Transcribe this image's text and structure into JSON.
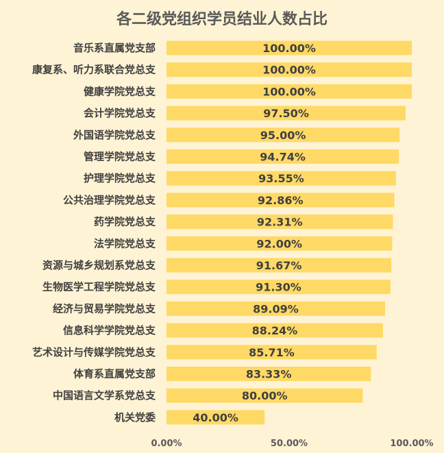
{
  "chart_data": {
    "type": "bar",
    "orientation": "horizontal",
    "title": "各二级党组织学员结业人数占比",
    "categories": [
      "音乐系直属党支部",
      "康复系、听力系联合党总支",
      "健康学院党总支",
      "会计学院党总支",
      "外国语学院党总支",
      "管理学院党总支",
      "护理学院党总支",
      "公共治理学院党总支",
      "药学院党总支",
      "法学院党总支",
      "资源与城乡规划系党总支",
      "生物医学工程学院党总支",
      "经济与贸易学院党总支",
      "信息科学学院党总支",
      "艺术设计与传媒学院党总支",
      "体育系直属党支部",
      "中国语言文学系党总支",
      "机关党委"
    ],
    "values": [
      100.0,
      100.0,
      100.0,
      97.5,
      95.0,
      94.74,
      93.55,
      92.86,
      92.31,
      92.0,
      91.67,
      91.3,
      89.09,
      88.24,
      85.71,
      83.33,
      80.0,
      40.0
    ],
    "value_labels": [
      "100.00%",
      "100.00%",
      "100.00%",
      "97.50%",
      "95.00%",
      "94.74%",
      "93.55%",
      "92.86%",
      "92.31%",
      "92.00%",
      "91.67%",
      "91.30%",
      "89.09%",
      "88.24%",
      "85.71%",
      "83.33%",
      "80.00%",
      "40.00%"
    ],
    "xlim": [
      0,
      100
    ],
    "xticks": [
      0,
      50,
      100
    ],
    "xtick_labels": [
      "0.00%",
      "50.00%",
      "100.00%"
    ],
    "grid": false,
    "legend": "none",
    "bar_color": "#FFD966",
    "background_color": "#FEF3D4"
  }
}
